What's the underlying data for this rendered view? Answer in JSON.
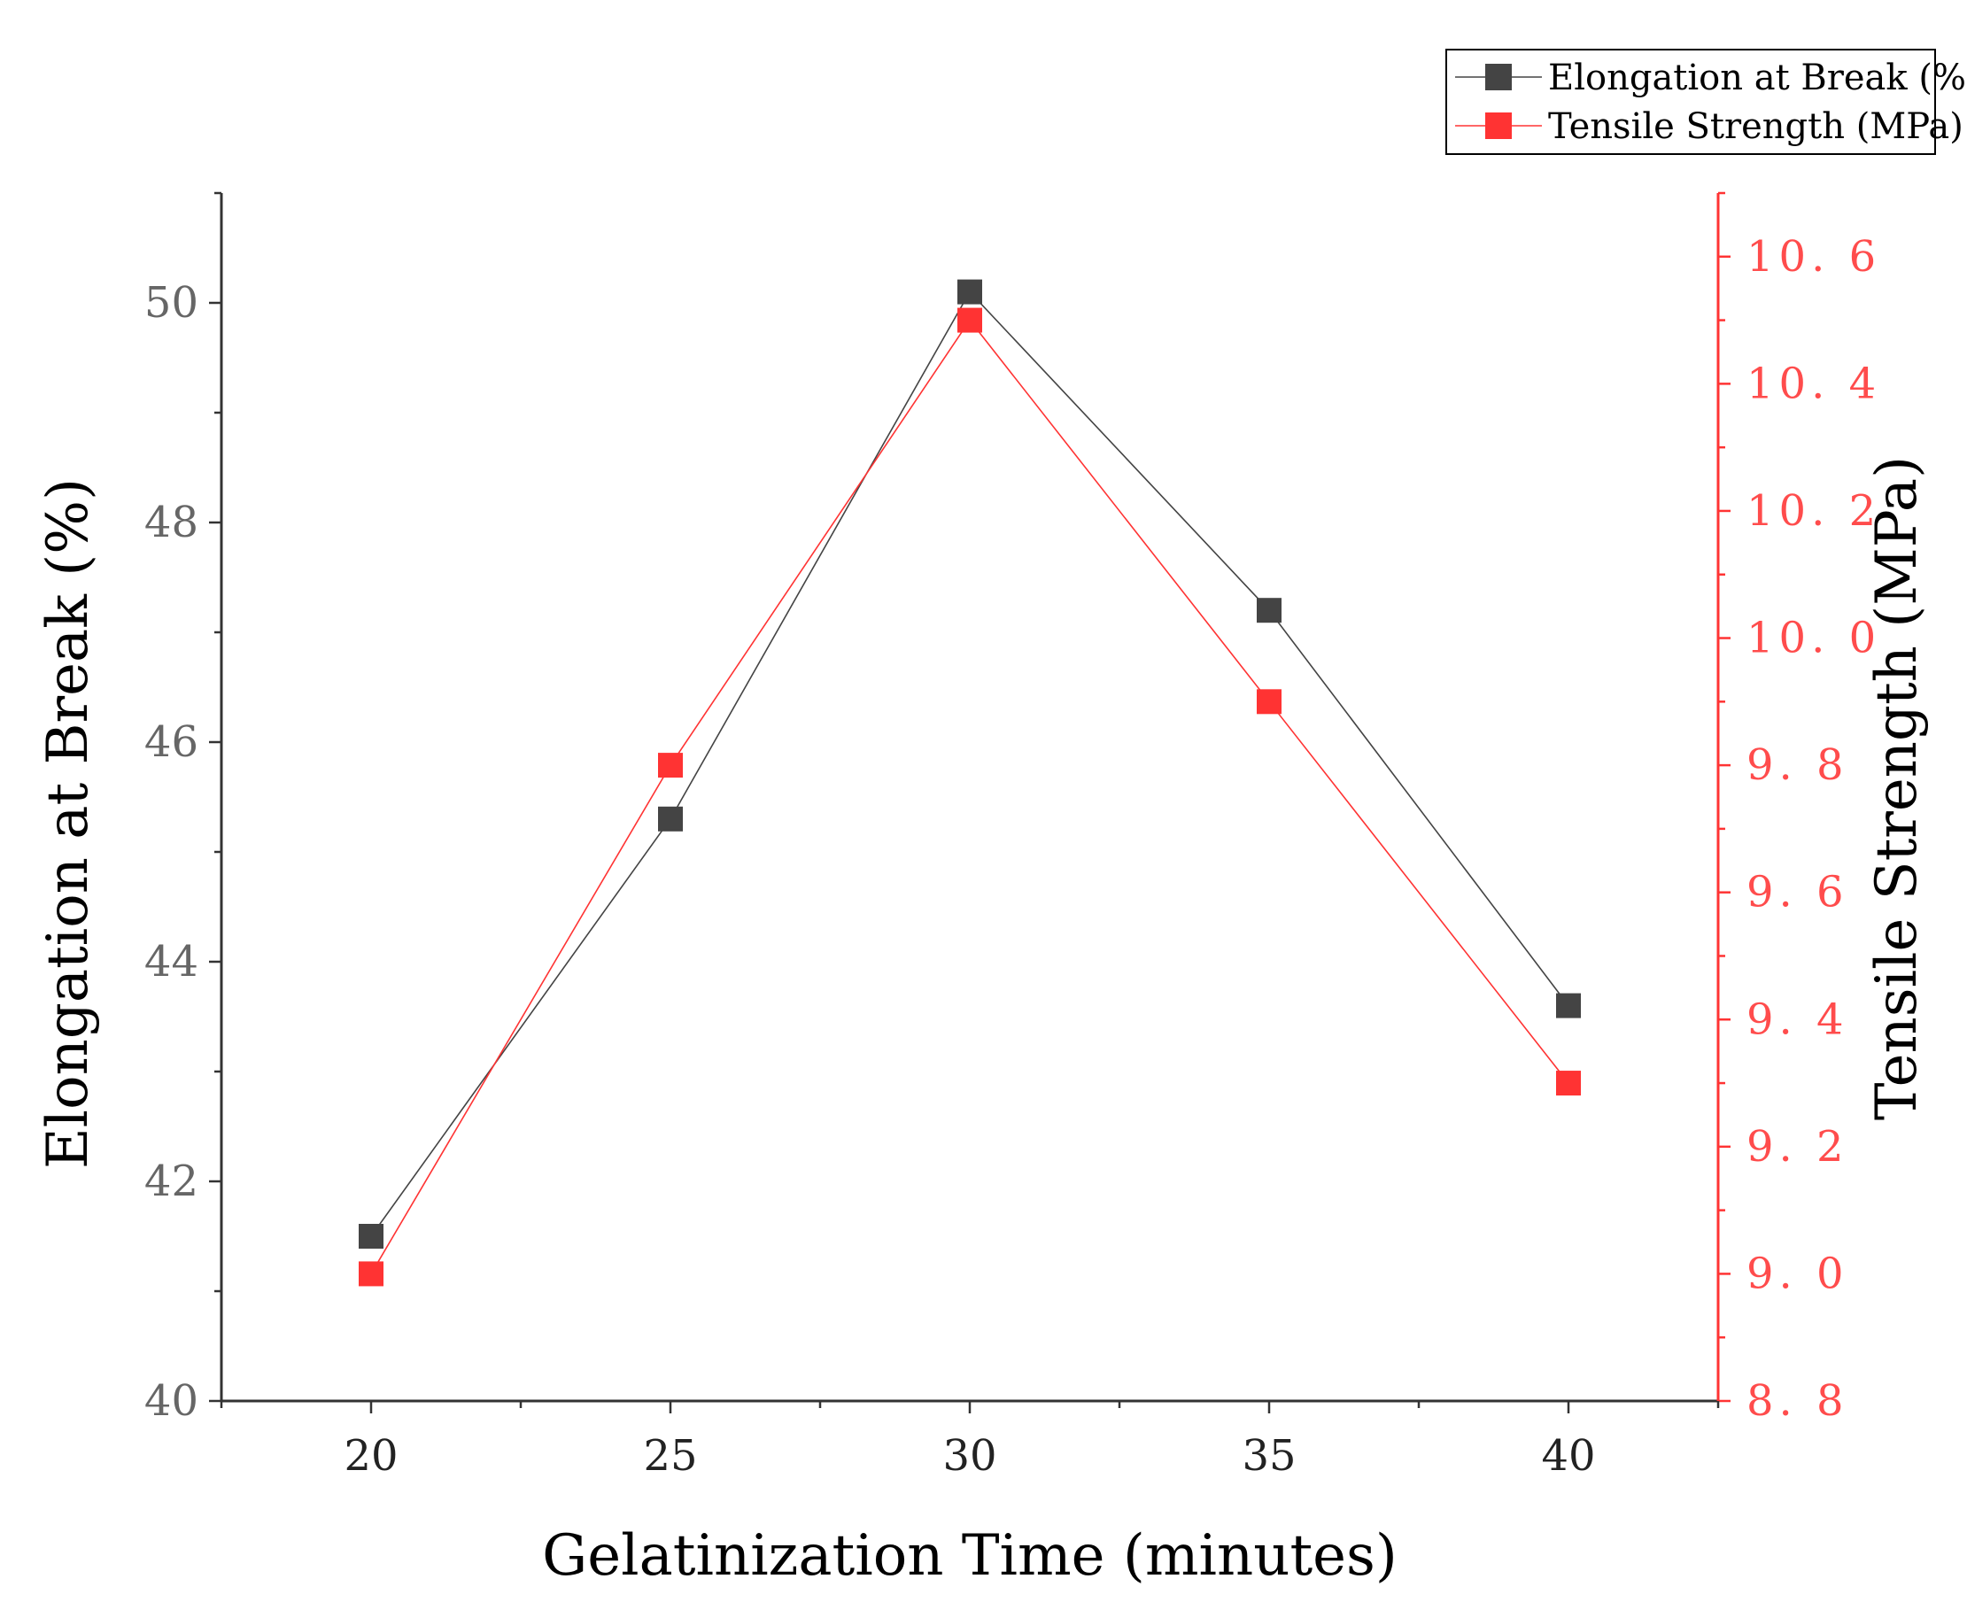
{
  "chart_data": {
    "type": "line",
    "title": "",
    "xlabel": "Gelatinization Time (minutes)",
    "ylabel_left": "Elongation at Break (%)",
    "ylabel_right": "Tensile Strength (MPa)",
    "x": [
      20,
      25,
      30,
      35,
      40
    ],
    "xlim": [
      17.5,
      42.5
    ],
    "x_ticks": [
      "20",
      "25",
      "30",
      "35",
      "40"
    ],
    "ylim_left": [
      40,
      51
    ],
    "y_ticks_left": [
      "40",
      "42",
      "44",
      "46",
      "48",
      "50"
    ],
    "ylim_right": [
      8.8,
      10.7
    ],
    "y_ticks_right": [
      "8. 8",
      "9. 0",
      "9. 2",
      "9. 4",
      "9. 6",
      "9. 8",
      "10. 0",
      "10. 2",
      "10. 4",
      "10. 6"
    ],
    "legend_position": "top-right",
    "series": [
      {
        "name": "Elongation at Break (%)",
        "axis": "left",
        "color": "#444444",
        "values": [
          41.5,
          45.3,
          50.1,
          47.2,
          43.6
        ]
      },
      {
        "name": "Tensile Strength (MPa)",
        "axis": "right",
        "color": "#ff3333",
        "values": [
          9.0,
          9.8,
          10.5,
          9.9,
          9.3
        ]
      }
    ]
  }
}
